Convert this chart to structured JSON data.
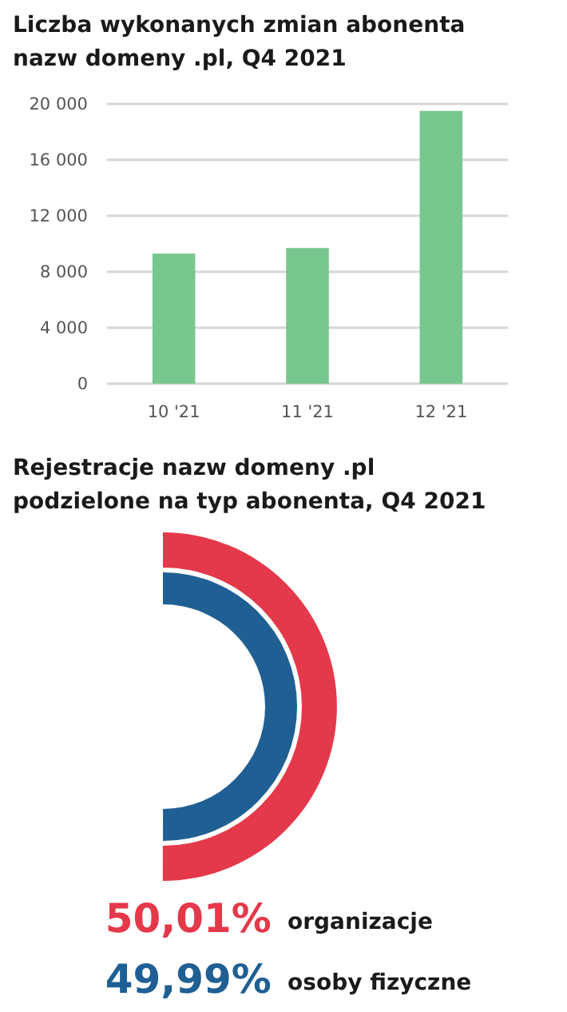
{
  "chart_data": [
    {
      "type": "bar",
      "title": "Liczba wykonanych zmian abonenta\nnazw domeny .pl, Q4 2021",
      "categories": [
        "10 '21",
        "11 '21",
        "12 '21"
      ],
      "values": [
        9300,
        9700,
        19500
      ],
      "color": "#77c78f",
      "ylim": [
        0,
        20000
      ],
      "yticks": [
        {
          "value": 0,
          "label": "0"
        },
        {
          "value": 4000,
          "label": "4 000"
        },
        {
          "value": 8000,
          "label": "8 000"
        },
        {
          "value": 12000,
          "label": "12 000"
        },
        {
          "value": 16000,
          "label": "16 000"
        },
        {
          "value": 20000,
          "label": "20 000"
        }
      ],
      "grid": "y"
    },
    {
      "type": "other",
      "title": "Rejestracje nazw domeny .pl\npodzielone na typ abonenta, Q4 2021",
      "categories": [
        "organizacje",
        "osoby fizyczne"
      ],
      "values": [
        50.01,
        49.99
      ],
      "colors": [
        "#e4394a",
        "#1f5f94"
      ],
      "value_labels": [
        "50,01%",
        "49,99%"
      ]
    }
  ]
}
